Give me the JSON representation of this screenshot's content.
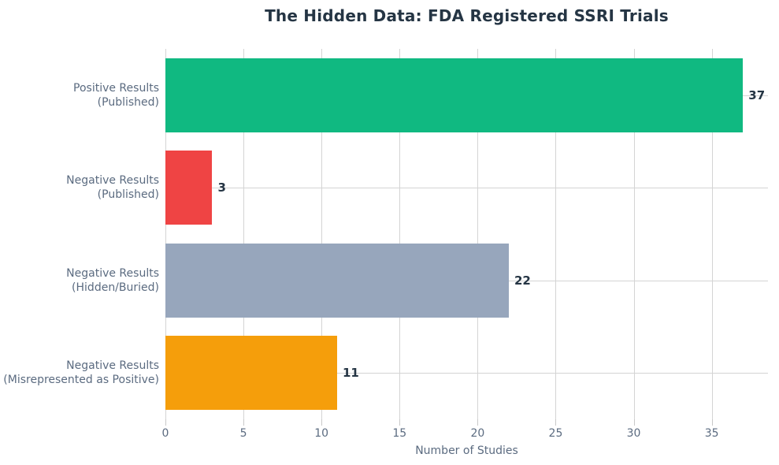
{
  "chart_data": {
    "type": "bar",
    "orientation": "horizontal",
    "title": "The Hidden Data: FDA Registered SSRI Trials",
    "xlabel": "Number of Studies",
    "ylabel": "",
    "categories": [
      "Positive Results\n(Published)",
      "Negative Results\n(Published)",
      "Negative Results\n(Hidden/Buried)",
      "Negative Results\n(Misrepresented as Positive)"
    ],
    "values": [
      37,
      3,
      22,
      11
    ],
    "bar_colors": [
      "#10b981",
      "#ef4444",
      "#97a6bc",
      "#f59e0b"
    ],
    "xlim": [
      0,
      38.6
    ],
    "xticks": [
      0,
      5,
      10,
      15,
      20,
      25,
      30,
      35
    ],
    "grid": "on",
    "legend": "none",
    "background_color": "#ffffff",
    "title_color": "#253544",
    "axis_label_color": "#5b6b80",
    "grid_color": "#d4d4d4"
  }
}
